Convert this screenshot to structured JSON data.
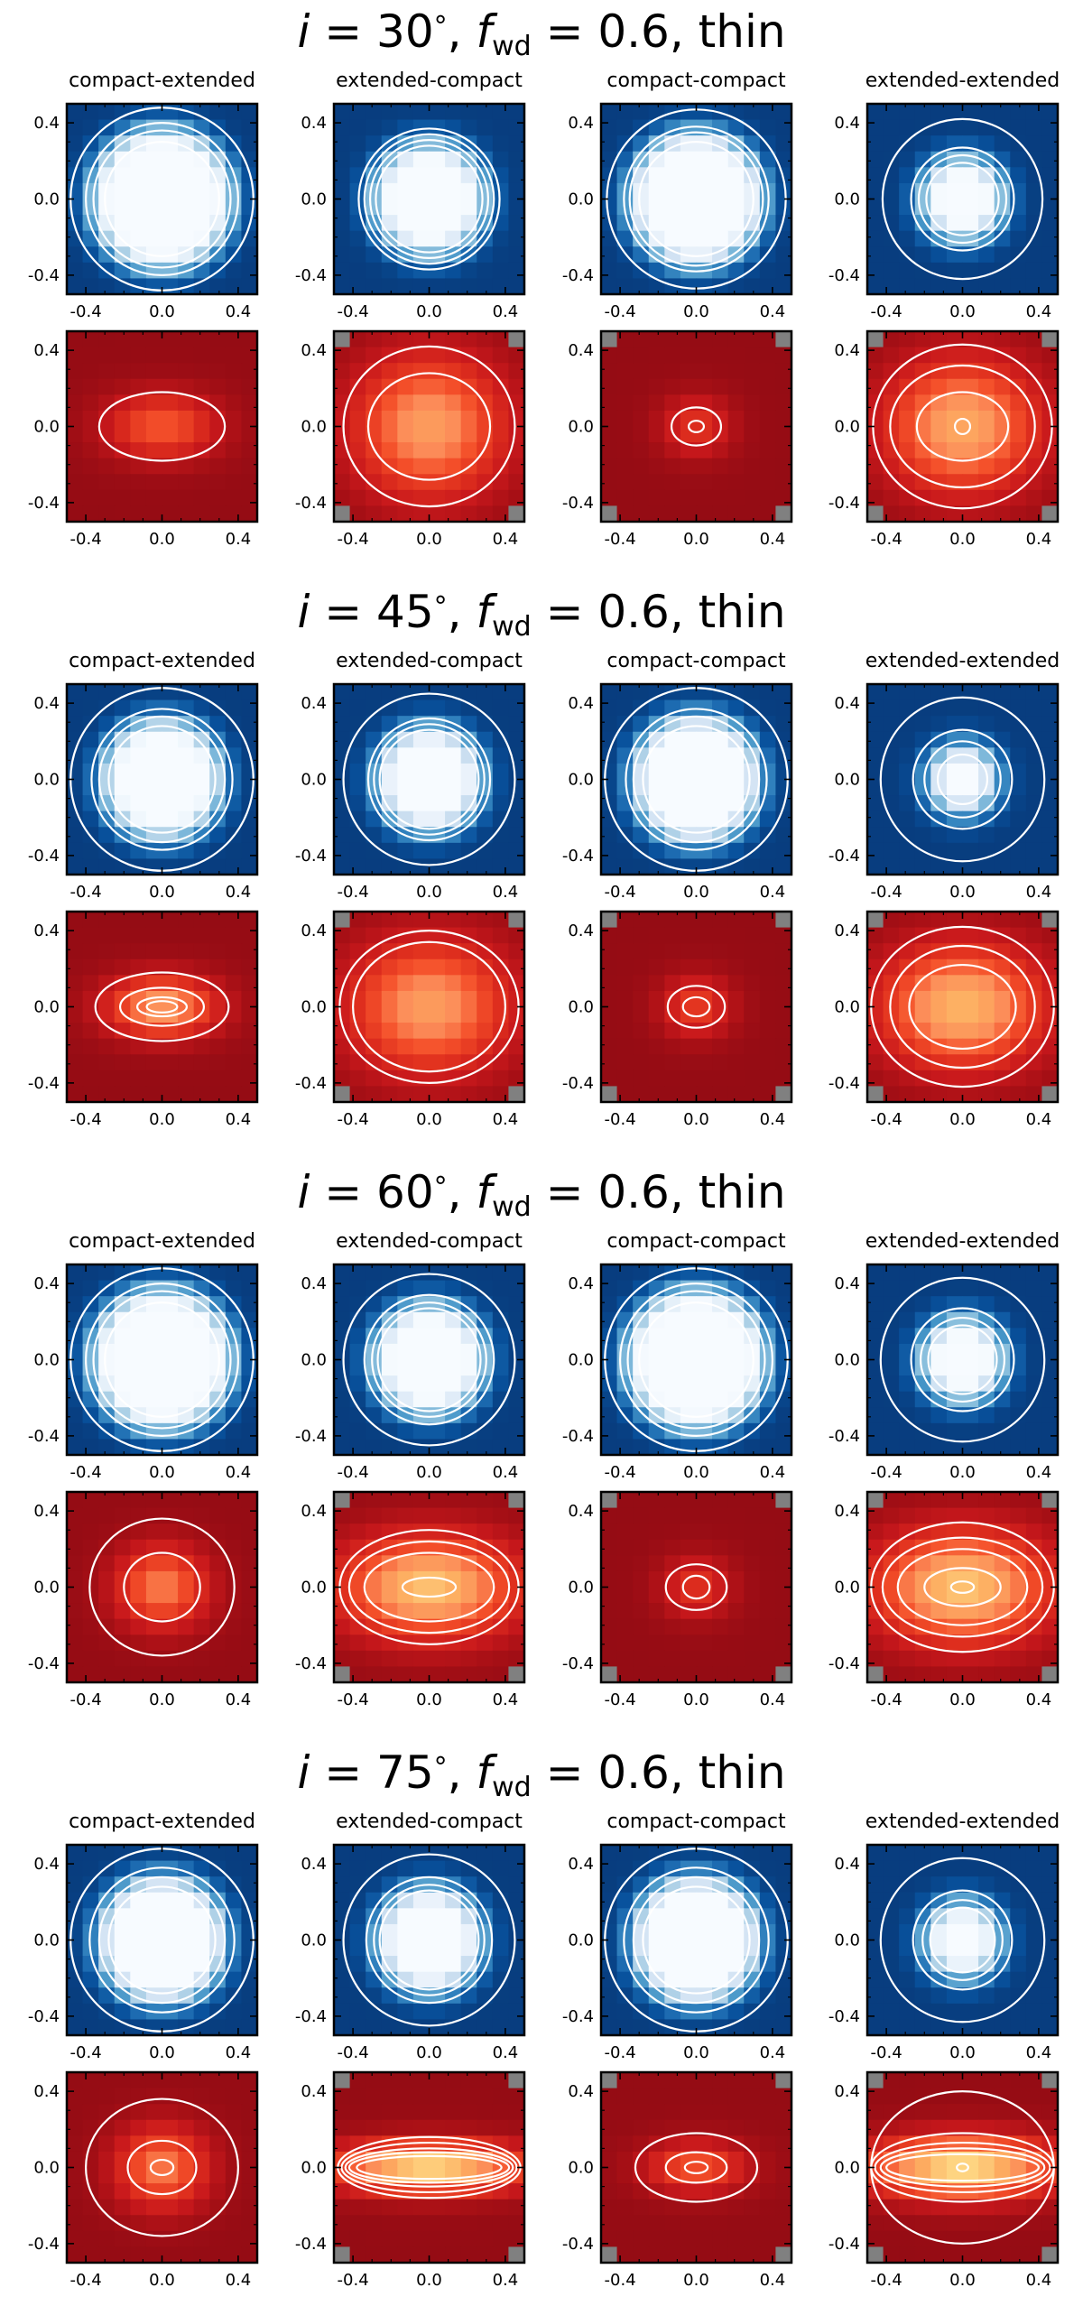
{
  "figure": {
    "columns": [
      "compact-extended",
      "extended-compact",
      "compact-compact",
      "extended-extended"
    ],
    "tick_labels": [
      "-0.4",
      "0.0",
      "0.4"
    ],
    "colors": {
      "blue_map": [
        "#08306b",
        "#08519c",
        "#2171b5",
        "#4292c6",
        "#6baed6",
        "#9ecae1",
        "#c6dbef",
        "#deebf7",
        "#f7fbff"
      ],
      "red_map": [
        "#8b0a14",
        "#a50f15",
        "#c8181c",
        "#e0301e",
        "#f4502a",
        "#fc8d59",
        "#fdae61",
        "#fee08b",
        "#ffffbf"
      ],
      "contour": "#ffffff",
      "masked": "#808080"
    }
  },
  "chart_data": [
    {
      "type": "heatmap",
      "title_parts": {
        "pre": "i",
        "mid": " = 30",
        "deg": "°",
        "comma": ", ",
        "f": "f",
        "sub": "wd",
        "post": " = 0.6, thin"
      },
      "xlim": [
        -0.5,
        0.5
      ],
      "ylim": [
        -0.5,
        0.5
      ],
      "xticks": [
        -0.4,
        0.0,
        0.4
      ],
      "yticks": [
        -0.4,
        0.0,
        0.4
      ],
      "blue_row": [
        {
          "subtitle": "compact-extended",
          "core": 0.28,
          "contours": [
            0.3,
            0.36,
            0.4,
            0.48
          ]
        },
        {
          "subtitle": "extended-compact",
          "core": 0.2,
          "contours": [
            0.28,
            0.31,
            0.34,
            0.37
          ]
        },
        {
          "subtitle": "compact-compact",
          "core": 0.26,
          "contours": [
            0.3,
            0.35,
            0.38,
            0.47
          ]
        },
        {
          "subtitle": "extended-extended",
          "core": 0.12,
          "contours": [
            0.19,
            0.23,
            0.27,
            0.42
          ]
        }
      ],
      "red_row": [
        {
          "subtitle": "compact-extended",
          "peak": 0.55,
          "sx": 0.22,
          "sy": 0.13,
          "contours": [
            {
              "rx": 0.33,
              "ry": 0.18
            }
          ]
        },
        {
          "subtitle": "extended-compact",
          "peak": 0.75,
          "sx": 0.3,
          "sy": 0.28,
          "contours": [
            {
              "rx": 0.45,
              "ry": 0.42
            },
            {
              "rx": 0.32,
              "ry": 0.28
            }
          ]
        },
        {
          "subtitle": "compact-compact",
          "peak": 0.4,
          "sx": 0.14,
          "sy": 0.12,
          "contours": [
            {
              "rx": 0.13,
              "ry": 0.1
            },
            {
              "rx": 0.04,
              "ry": 0.03
            }
          ]
        },
        {
          "subtitle": "extended-extended",
          "peak": 0.8,
          "sx": 0.3,
          "sy": 0.26,
          "contours": [
            {
              "rx": 0.47,
              "ry": 0.43
            },
            {
              "rx": 0.38,
              "ry": 0.32
            },
            {
              "rx": 0.24,
              "ry": 0.18
            },
            {
              "rx": 0.04,
              "ry": 0.04
            }
          ]
        }
      ]
    },
    {
      "type": "heatmap",
      "title_parts": {
        "pre": "i",
        "mid": " = 45",
        "deg": "°",
        "comma": ", ",
        "f": "f",
        "sub": "wd",
        "post": " = 0.6, thin"
      },
      "xlim": [
        -0.5,
        0.5
      ],
      "ylim": [
        -0.5,
        0.5
      ],
      "xticks": [
        -0.4,
        0.0,
        0.4
      ],
      "yticks": [
        -0.4,
        0.0,
        0.4
      ],
      "blue_row": [
        {
          "subtitle": "compact-extended",
          "core": 0.22,
          "contours": [
            0.28,
            0.33,
            0.37,
            0.48
          ]
        },
        {
          "subtitle": "extended-compact",
          "core": 0.18,
          "contours": [
            0.26,
            0.29,
            0.32,
            0.45
          ]
        },
        {
          "subtitle": "compact-compact",
          "core": 0.24,
          "contours": [
            0.28,
            0.33,
            0.37,
            0.48
          ]
        },
        {
          "subtitle": "extended-extended",
          "core": 0.08,
          "contours": [
            0.13,
            0.2,
            0.26,
            0.43
          ]
        }
      ],
      "red_row": [
        {
          "subtitle": "compact-extended",
          "peak": 0.75,
          "sx": 0.22,
          "sy": 0.12,
          "contours": [
            {
              "rx": 0.35,
              "ry": 0.18
            },
            {
              "rx": 0.22,
              "ry": 0.1
            },
            {
              "rx": 0.13,
              "ry": 0.05
            },
            {
              "rx": 0.08,
              "ry": 0.03
            }
          ]
        },
        {
          "subtitle": "extended-compact",
          "peak": 0.75,
          "sx": 0.32,
          "sy": 0.26,
          "contours": [
            {
              "rx": 0.47,
              "ry": 0.4
            },
            {
              "rx": 0.4,
              "ry": 0.34
            }
          ]
        },
        {
          "subtitle": "compact-compact",
          "peak": 0.45,
          "sx": 0.14,
          "sy": 0.12,
          "contours": [
            {
              "rx": 0.15,
              "ry": 0.11
            },
            {
              "rx": 0.07,
              "ry": 0.05
            }
          ]
        },
        {
          "subtitle": "extended-extended",
          "peak": 0.85,
          "sx": 0.32,
          "sy": 0.24,
          "contours": [
            {
              "rx": 0.48,
              "ry": 0.42
            },
            {
              "rx": 0.38,
              "ry": 0.32
            },
            {
              "rx": 0.28,
              "ry": 0.22
            }
          ]
        }
      ]
    },
    {
      "type": "heatmap",
      "title_parts": {
        "pre": "i",
        "mid": " = 60",
        "deg": "°",
        "comma": ", ",
        "f": "f",
        "sub": "wd",
        "post": " = 0.6, thin"
      },
      "xlim": [
        -0.5,
        0.5
      ],
      "ylim": [
        -0.5,
        0.5
      ],
      "xticks": [
        -0.4,
        0.0,
        0.4
      ],
      "yticks": [
        -0.4,
        0.0,
        0.4
      ],
      "blue_row": [
        {
          "subtitle": "compact-extended",
          "core": 0.28,
          "contours": [
            0.3,
            0.36,
            0.4,
            0.48
          ]
        },
        {
          "subtitle": "extended-compact",
          "core": 0.2,
          "contours": [
            0.27,
            0.3,
            0.34,
            0.45
          ]
        },
        {
          "subtitle": "compact-compact",
          "core": 0.28,
          "contours": [
            0.3,
            0.36,
            0.4,
            0.48
          ]
        },
        {
          "subtitle": "extended-extended",
          "core": 0.12,
          "contours": [
            0.18,
            0.22,
            0.27,
            0.43
          ]
        }
      ],
      "red_row": [
        {
          "subtitle": "compact-extended",
          "peak": 0.65,
          "sx": 0.18,
          "sy": 0.16,
          "contours": [
            {
              "rx": 0.38,
              "ry": 0.36
            },
            {
              "rx": 0.2,
              "ry": 0.18
            }
          ]
        },
        {
          "subtitle": "extended-compact",
          "peak": 0.9,
          "sx": 0.35,
          "sy": 0.2,
          "contours": [
            {
              "rx": 0.47,
              "ry": 0.3
            },
            {
              "rx": 0.42,
              "ry": 0.24
            },
            {
              "rx": 0.34,
              "ry": 0.18
            },
            {
              "rx": 0.14,
              "ry": 0.05
            }
          ]
        },
        {
          "subtitle": "compact-compact",
          "peak": 0.4,
          "sx": 0.14,
          "sy": 0.12,
          "contours": [
            {
              "rx": 0.16,
              "ry": 0.12
            },
            {
              "rx": 0.07,
              "ry": 0.06
            }
          ]
        },
        {
          "subtitle": "extended-extended",
          "peak": 0.9,
          "sx": 0.35,
          "sy": 0.22,
          "contours": [
            {
              "rx": 0.48,
              "ry": 0.34
            },
            {
              "rx": 0.42,
              "ry": 0.26
            },
            {
              "rx": 0.34,
              "ry": 0.2
            },
            {
              "rx": 0.2,
              "ry": 0.1
            },
            {
              "rx": 0.06,
              "ry": 0.03
            }
          ]
        }
      ]
    },
    {
      "type": "heatmap",
      "title_parts": {
        "pre": "i",
        "mid": " = 75",
        "deg": "°",
        "comma": ", ",
        "f": "f",
        "sub": "wd",
        "post": " = 0.6, thin"
      },
      "xlim": [
        -0.5,
        0.5
      ],
      "ylim": [
        -0.5,
        0.5
      ],
      "xticks": [
        -0.4,
        0.0,
        0.4
      ],
      "yticks": [
        -0.4,
        0.0,
        0.4
      ],
      "blue_row": [
        {
          "subtitle": "compact-extended",
          "core": 0.24,
          "contours": [
            0.28,
            0.33,
            0.38,
            0.48
          ]
        },
        {
          "subtitle": "extended-compact",
          "core": 0.18,
          "contours": [
            0.26,
            0.29,
            0.33,
            0.45
          ]
        },
        {
          "subtitle": "compact-compact",
          "core": 0.24,
          "contours": [
            0.28,
            0.33,
            0.38,
            0.48
          ]
        },
        {
          "subtitle": "extended-extended",
          "core": 0.1,
          "contours": [
            0.17,
            0.21,
            0.26,
            0.43
          ]
        }
      ],
      "red_row": [
        {
          "subtitle": "compact-extended",
          "peak": 0.65,
          "sx": 0.18,
          "sy": 0.16,
          "contours": [
            {
              "rx": 0.4,
              "ry": 0.36
            },
            {
              "rx": 0.18,
              "ry": 0.14
            },
            {
              "rx": 0.06,
              "ry": 0.04
            }
          ]
        },
        {
          "subtitle": "extended-compact",
          "peak": 1.0,
          "sx": 0.38,
          "sy": 0.1,
          "contours": [
            {
              "rx": 0.48,
              "ry": 0.16
            },
            {
              "rx": 0.46,
              "ry": 0.13
            },
            {
              "rx": 0.44,
              "ry": 0.1
            },
            {
              "rx": 0.42,
              "ry": 0.08
            },
            {
              "rx": 0.38,
              "ry": 0.06
            }
          ]
        },
        {
          "subtitle": "compact-compact",
          "peak": 0.55,
          "sx": 0.2,
          "sy": 0.1,
          "contours": [
            {
              "rx": 0.32,
              "ry": 0.18
            },
            {
              "rx": 0.16,
              "ry": 0.08
            },
            {
              "rx": 0.06,
              "ry": 0.03
            }
          ]
        },
        {
          "subtitle": "extended-extended",
          "peak": 1.0,
          "sx": 0.38,
          "sy": 0.12,
          "contours": [
            {
              "rx": 0.48,
              "ry": 0.4
            },
            {
              "rx": 0.48,
              "ry": 0.18
            },
            {
              "rx": 0.46,
              "ry": 0.13
            },
            {
              "rx": 0.43,
              "ry": 0.1
            },
            {
              "rx": 0.4,
              "ry": 0.07
            },
            {
              "rx": 0.03,
              "ry": 0.02
            }
          ]
        }
      ]
    }
  ]
}
